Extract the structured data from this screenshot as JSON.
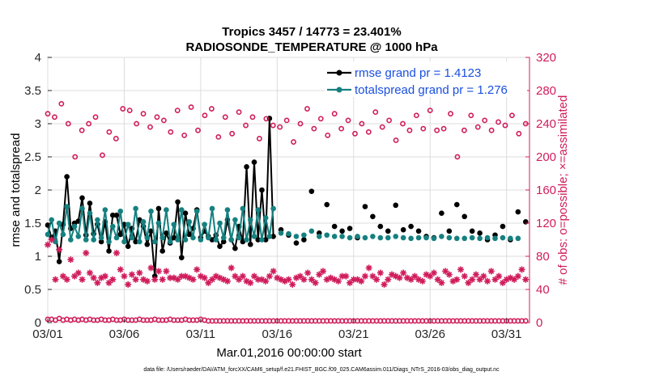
{
  "chart_data": {
    "type": "line",
    "title_line1": "Tropics 3457 / 14773 = 23.401%",
    "title_line2": "RADIOSONDE_TEMPERATURE @ 1000 hPa",
    "xlabel": "Mar.01,2016 00:00:00 start",
    "ylabel_left": "rmse and totalspread",
    "ylabel_right": "# of obs: o=possible; ×=assimilated",
    "footnote": "data file: /Users/raeder/DAI/ATM_forcXX/CAM6_setup/f.e21.FHIST_BGC.f09_025.CAM6assim.011/Diags_NTrS_2016-03/obs_diag_output.nc",
    "xlim": [
      0,
      31.5
    ],
    "ylim_left": [
      0,
      4
    ],
    "ylim_right": [
      0,
      320
    ],
    "x_ticks": [
      0,
      5,
      10,
      15,
      20,
      25,
      30
    ],
    "x_tick_labels": [
      "03/01",
      "03/06",
      "03/11",
      "03/16",
      "03/21",
      "03/26",
      "03/31"
    ],
    "y_ticks_left": [
      0,
      0.5,
      1,
      1.5,
      2,
      2.5,
      3,
      3.5,
      4
    ],
    "y_tick_labels_left": [
      "0",
      "0.5",
      "1",
      "1.5",
      "2",
      "2.5",
      "3",
      "3.5",
      "4"
    ],
    "y_ticks_right": [
      0,
      40,
      80,
      120,
      160,
      200,
      240,
      280,
      320
    ],
    "y_tick_labels_right": [
      "0",
      "40",
      "80",
      "120",
      "160",
      "200",
      "240",
      "280",
      "320"
    ],
    "x_step_days": 0.25,
    "series": [
      {
        "name": "rmse grand pr = 1.4123",
        "color": "#000000",
        "marker": "dot",
        "axis": "left",
        "x0": 0,
        "values": [
          1.47,
          1.28,
          1.38,
          0.92,
          1.48,
          2.2,
          1.42,
          1.5,
          1.53,
          1.88,
          1.32,
          1.8,
          1.34,
          1.48,
          1.22,
          1.52,
          1.08,
          1.62,
          1.62,
          1.33,
          1.48,
          1.15,
          1.42,
          1.22,
          1.55,
          1.45,
          1.18,
          1.38,
          0.7,
          1.72,
          1.08,
          1.35,
          1.2,
          1.28,
          1.82,
          0.98,
          1.65,
          1.33,
          1.42,
          1.7,
          1.28,
          1.38,
          1.3,
          1.25,
          1.32,
          1.15,
          1.22,
          1.55,
          1.25,
          1.12,
          1.45,
          1.22,
          2.35,
          1.18,
          2.42,
          1.25,
          2.0,
          1.25,
          3.08,
          1.3,
          null,
          1.4,
          null,
          1.32,
          null,
          1.2,
          null,
          1.25,
          null,
          1.98,
          null,
          1.35,
          null,
          1.78,
          null,
          1.45,
          null,
          1.38,
          null,
          1.42,
          null,
          1.28,
          null,
          1.75,
          null,
          1.6,
          null,
          1.45,
          null,
          1.38,
          null,
          1.77,
          null,
          1.4,
          null,
          1.45,
          null,
          1.38,
          null,
          1.3,
          null,
          1.28,
          null,
          1.65,
          null,
          1.38,
          null,
          1.78,
          null,
          1.6,
          null,
          1.38,
          null,
          1.35,
          null,
          1.25,
          null,
          1.32,
          null,
          1.45,
          null,
          1.25,
          null,
          1.67,
          null,
          1.52
        ]
      },
      {
        "name": "totalspread grand pr = 1.276",
        "color": "#168080",
        "marker": "dot",
        "axis": "left",
        "x0": 0,
        "values": [
          1.33,
          1.55,
          1.22,
          1.5,
          1.33,
          1.75,
          1.25,
          1.45,
          1.3,
          1.72,
          1.25,
          1.65,
          1.25,
          1.55,
          1.28,
          1.7,
          1.22,
          1.45,
          1.28,
          1.68,
          1.22,
          1.48,
          1.28,
          1.72,
          1.22,
          1.52,
          1.28,
          1.68,
          1.22,
          1.5,
          1.28,
          1.7,
          1.22,
          1.48,
          1.25,
          1.7,
          1.25,
          1.52,
          1.28,
          1.68,
          1.25,
          1.48,
          1.28,
          1.72,
          1.25,
          1.5,
          1.28,
          1.7,
          1.25,
          1.55,
          1.28,
          1.72,
          1.25,
          1.55,
          1.3,
          1.7,
          1.25,
          1.58,
          1.3,
          1.72,
          null,
          1.35,
          null,
          1.34,
          null,
          1.3,
          null,
          1.32,
          null,
          1.38,
          null,
          1.3,
          null,
          1.32,
          null,
          1.3,
          null,
          1.3,
          null,
          1.28,
          null,
          1.3,
          null,
          1.28,
          null,
          1.3,
          null,
          1.28,
          null,
          1.28,
          null,
          1.3,
          null,
          1.28,
          null,
          1.27,
          null,
          1.28,
          null,
          1.28,
          null,
          1.27,
          null,
          1.3,
          null,
          1.28,
          null,
          1.27,
          null,
          1.27,
          null,
          1.28,
          null,
          1.27,
          null,
          1.28,
          null,
          1.27,
          null,
          1.28,
          null,
          1.27,
          null,
          1.27
        ]
      },
      {
        "name": "possible obs",
        "color": "#d01c5b",
        "marker": "open-circle",
        "axis": "right",
        "x0": 0,
        "values": [
          252,
          248,
          264,
          240,
          200,
          232,
          240,
          248,
          202,
          230,
          222,
          258,
          256,
          240,
          252,
          236,
          248,
          244,
          230,
          256,
          226,
          260,
          232,
          250,
          258,
          224,
          248,
          228,
          254,
          238,
          248,
          222,
          246,
          238,
          236,
          244,
          218,
          240,
          258,
          234,
          246,
          226,
          252,
          234,
          244,
          228,
          240,
          230,
          254,
          236,
          244,
          220,
          240,
          232,
          250,
          234,
          256,
          232,
          234,
          252,
          200,
          232,
          250,
          236,
          244,
          232,
          242,
          238,
          250,
          228,
          240
        ]
      },
      {
        "name": "assimilated obs",
        "color": "#d01c5b",
        "marker": "asterisk",
        "axis": "right",
        "x0": 0,
        "values": [
          94,
          100,
          52,
          88,
          56,
          52,
          76,
          56,
          60,
          52,
          84,
          60,
          54,
          48,
          54,
          56,
          48,
          52,
          84,
          64,
          56,
          46,
          58,
          52,
          60,
          52,
          50,
          66,
          52,
          62,
          52,
          62,
          54,
          54,
          52,
          56,
          56,
          54,
          52,
          64,
          56,
          54,
          48,
          52,
          56,
          54,
          52,
          50,
          66,
          56,
          52,
          56,
          50,
          48,
          56,
          52,
          52,
          50,
          56,
          62,
          54,
          52,
          50,
          52,
          46,
          54,
          56,
          52,
          60,
          52,
          48,
          58,
          62,
          52,
          54,
          52,
          50,
          56,
          56,
          48,
          52,
          52,
          50,
          56,
          66,
          56,
          52,
          60,
          46,
          52,
          58,
          56,
          54,
          60,
          54,
          52,
          56,
          52,
          50,
          58,
          56,
          60,
          52,
          48,
          62,
          58,
          50,
          52,
          64,
          56,
          48,
          52,
          58,
          52,
          56,
          50,
          62,
          52,
          56,
          48,
          52,
          54,
          52,
          56,
          64,
          52
        ]
      },
      {
        "name": "possible obs (0 hPa bin)",
        "color": "#d01c5b",
        "marker": "open-circle",
        "axis": "right",
        "x0": 0,
        "values": [
          4,
          4,
          3,
          5,
          3,
          4,
          3,
          4,
          3,
          4,
          3,
          4,
          3,
          3,
          4,
          3,
          3,
          4,
          3,
          3,
          4,
          3,
          3,
          3,
          4,
          3,
          3,
          3,
          4,
          3,
          3,
          3,
          4,
          3,
          3,
          3,
          4,
          3,
          3,
          3,
          4,
          3,
          2,
          2,
          2,
          2,
          2,
          2,
          2,
          2,
          2,
          2,
          2,
          2,
          2,
          2,
          2,
          2,
          2,
          2,
          2,
          2,
          2,
          2,
          2,
          2,
          2,
          2,
          2,
          2,
          2,
          2,
          2,
          2,
          2,
          2,
          2,
          2,
          2,
          2,
          2,
          2,
          2,
          2,
          2,
          2,
          2,
          2,
          2,
          2,
          2,
          2,
          2,
          2,
          2,
          2,
          2,
          2,
          2,
          2,
          2,
          2,
          2,
          2,
          2,
          2,
          2,
          2,
          2,
          2,
          2,
          2,
          2,
          2,
          2,
          2,
          2,
          2,
          2,
          2,
          2,
          2,
          2,
          2,
          2,
          2
        ]
      }
    ],
    "legend": {
      "placement": "top-right",
      "entries": [
        {
          "label": "rmse grand pr = 1.4123",
          "line_color": "#000000",
          "text_color": "#1a4fe0"
        },
        {
          "label": "totalspread grand pr = 1.276",
          "line_color": "#168080",
          "text_color": "#1a4fe0"
        }
      ]
    },
    "right_axis_color": "#d01c5b"
  }
}
